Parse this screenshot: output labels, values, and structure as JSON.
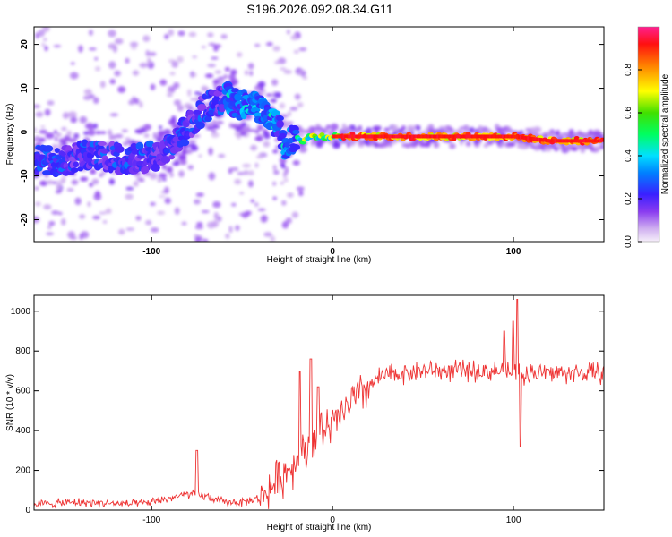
{
  "title": "S196.2026.092.08.34.G11",
  "chart_data": [
    {
      "type": "heatmap",
      "xlabel": "Height of straight line (km)",
      "ylabel": "Frequency (Hz)",
      "xlim": [
        -165,
        150
      ],
      "ylim": [
        -25,
        24
      ],
      "x_ticks": [
        "-100",
        "0",
        "100"
      ],
      "y_ticks": [
        "20",
        "10",
        "0",
        "-10",
        "-20"
      ],
      "ridge": {
        "x": [
          -165,
          -150,
          -135,
          -120,
          -105,
          -95,
          -88,
          -80,
          -72,
          -65,
          -58,
          -52,
          -45,
          -40,
          -35,
          -30,
          -27,
          -24,
          -20,
          -16,
          -12,
          -8,
          -4,
          0,
          20,
          40,
          60,
          80,
          100,
          120,
          148
        ],
        "y": [
          -6,
          -7,
          -5,
          -6,
          -6,
          -5,
          -3,
          1,
          5,
          7,
          8,
          6,
          7,
          5,
          3,
          2,
          -3,
          -2,
          -1,
          -2,
          -1,
          -1,
          -1,
          -1,
          -1,
          -1,
          -1,
          -1,
          -1,
          -2,
          -2
        ]
      },
      "colorbar": {
        "label": "Normalized spectral amplitude",
        "range": [
          0,
          1
        ],
        "ticks": [
          "0.0",
          "0.2",
          "0.4",
          "0.6",
          "0.8"
        ]
      }
    },
    {
      "type": "line",
      "xlabel": "Height of straight line (km)",
      "ylabel": "SNR (10 * v/v)",
      "xlim": [
        -165,
        150
      ],
      "ylim": [
        0,
        1080
      ],
      "x_ticks": [
        "-100",
        "0",
        "100"
      ],
      "y_ticks": [
        "1000",
        "800",
        "600",
        "400",
        "200",
        "0"
      ],
      "series_color": "#ee3333",
      "baseline": {
        "x": [
          -165,
          -140,
          -110,
          -100,
          -90,
          -80,
          -70,
          -60,
          -50,
          -40,
          -30,
          -25,
          -20,
          -15,
          -10,
          -5,
          0,
          5,
          10,
          15,
          20,
          25,
          30,
          40,
          50,
          60,
          70,
          80,
          90,
          100,
          110,
          120,
          130,
          140,
          150
        ],
        "y": [
          30,
          40,
          30,
          40,
          60,
          80,
          70,
          40,
          40,
          60,
          150,
          200,
          250,
          300,
          350,
          400,
          420,
          480,
          540,
          580,
          620,
          660,
          680,
          690,
          700,
          700,
          700,
          700,
          700,
          690,
          690,
          690,
          690,
          690,
          690
        ]
      },
      "spikes": {
        "x": [
          -75,
          -12,
          -18,
          -8,
          95,
          100,
          102,
          104
        ],
        "y": [
          300,
          760,
          700,
          620,
          900,
          950,
          1060,
          320
        ]
      }
    }
  ]
}
